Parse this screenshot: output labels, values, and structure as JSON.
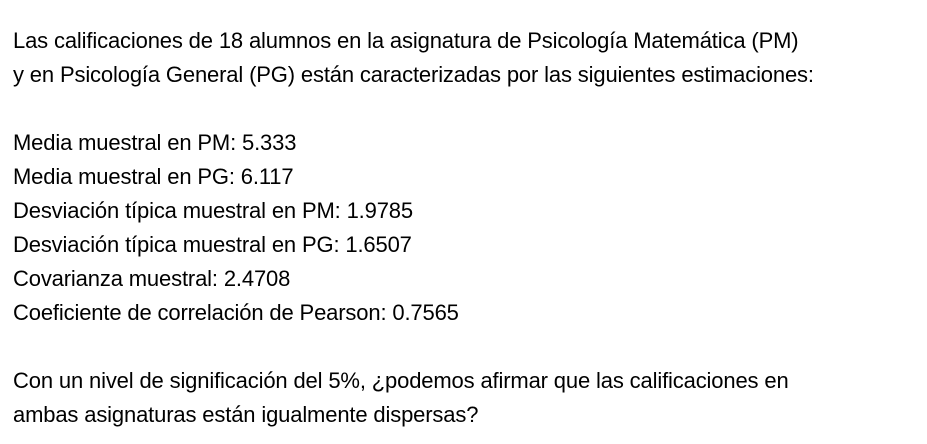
{
  "intro": {
    "line1": "Las calificaciones de 18 alumnos en la asignatura de Psicología Matemática (PM)",
    "line2": "y en Psicología General (PG) están caracterizadas por las siguientes estimaciones:"
  },
  "stats": [
    "Media muestral en PM: 5.333",
    "Media muestral en PG: 6.117",
    "Desviación típica muestral en PM: 1.9785",
    "Desviación típica muestral en PG: 1.6507",
    "Covarianza muestral: 2.4708",
    "Coeficiente de correlación de Pearson: 0.7565"
  ],
  "question": {
    "line1": "Con un nivel de significación del 5%, ¿podemos afirmar que las calificaciones en",
    "line2": "ambas asignaturas están igualmente dispersas?"
  }
}
